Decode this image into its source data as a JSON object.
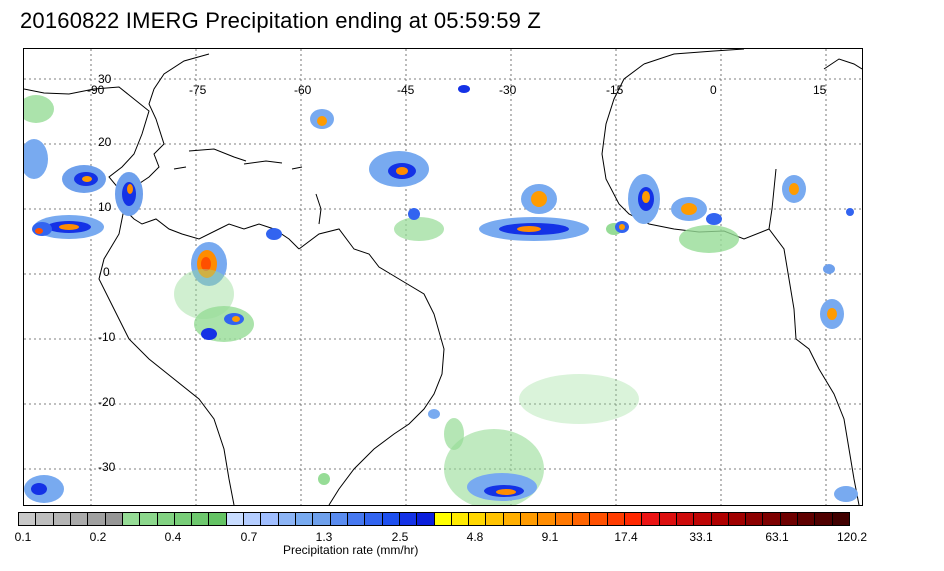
{
  "title": "20160822 IMERG Precipitation ending at 05:59:59 Z",
  "map": {
    "lon_labels": [
      "-90",
      "-75",
      "-60",
      "-45",
      "-30",
      "-15",
      "0",
      "15"
    ],
    "lat_labels": [
      "30",
      "20",
      "10",
      "0",
      "-10",
      "-20",
      "-30"
    ]
  },
  "colorbar": {
    "label": "Precipitation rate (mm/hr)",
    "tick_labels": [
      "0.1",
      "0.2",
      "0.4",
      "0.7",
      "1.3",
      "2.5",
      "4.8",
      "9.1",
      "17.4",
      "33.1",
      "63.1",
      "120.2"
    ],
    "colors": [
      "#c8c8c8",
      "#bebebe",
      "#b4b4b4",
      "#aaaaaa",
      "#a0a0a0",
      "#969696",
      "#96dc96",
      "#8cd78c",
      "#82d282",
      "#78cd78",
      "#6ec86e",
      "#64c364",
      "#c8dcff",
      "#b4cdff",
      "#a0beff",
      "#8cb4f5",
      "#78aaf0",
      "#6ea0ec",
      "#5a8cf0",
      "#4678f0",
      "#3264f0",
      "#1e50f0",
      "#1432e6",
      "#0a1edc",
      "#ffff00",
      "#ffea00",
      "#ffd700",
      "#ffc300",
      "#ffaf00",
      "#ff9b00",
      "#ff8c00",
      "#ff7800",
      "#ff6400",
      "#ff5000",
      "#ff3c00",
      "#ff2800",
      "#eb1414",
      "#dc0f0f",
      "#cd0a0a",
      "#be0505",
      "#af0000",
      "#a00000",
      "#8c0000",
      "#7d0000",
      "#6e0000",
      "#5f0000",
      "#500000",
      "#410000"
    ]
  }
}
